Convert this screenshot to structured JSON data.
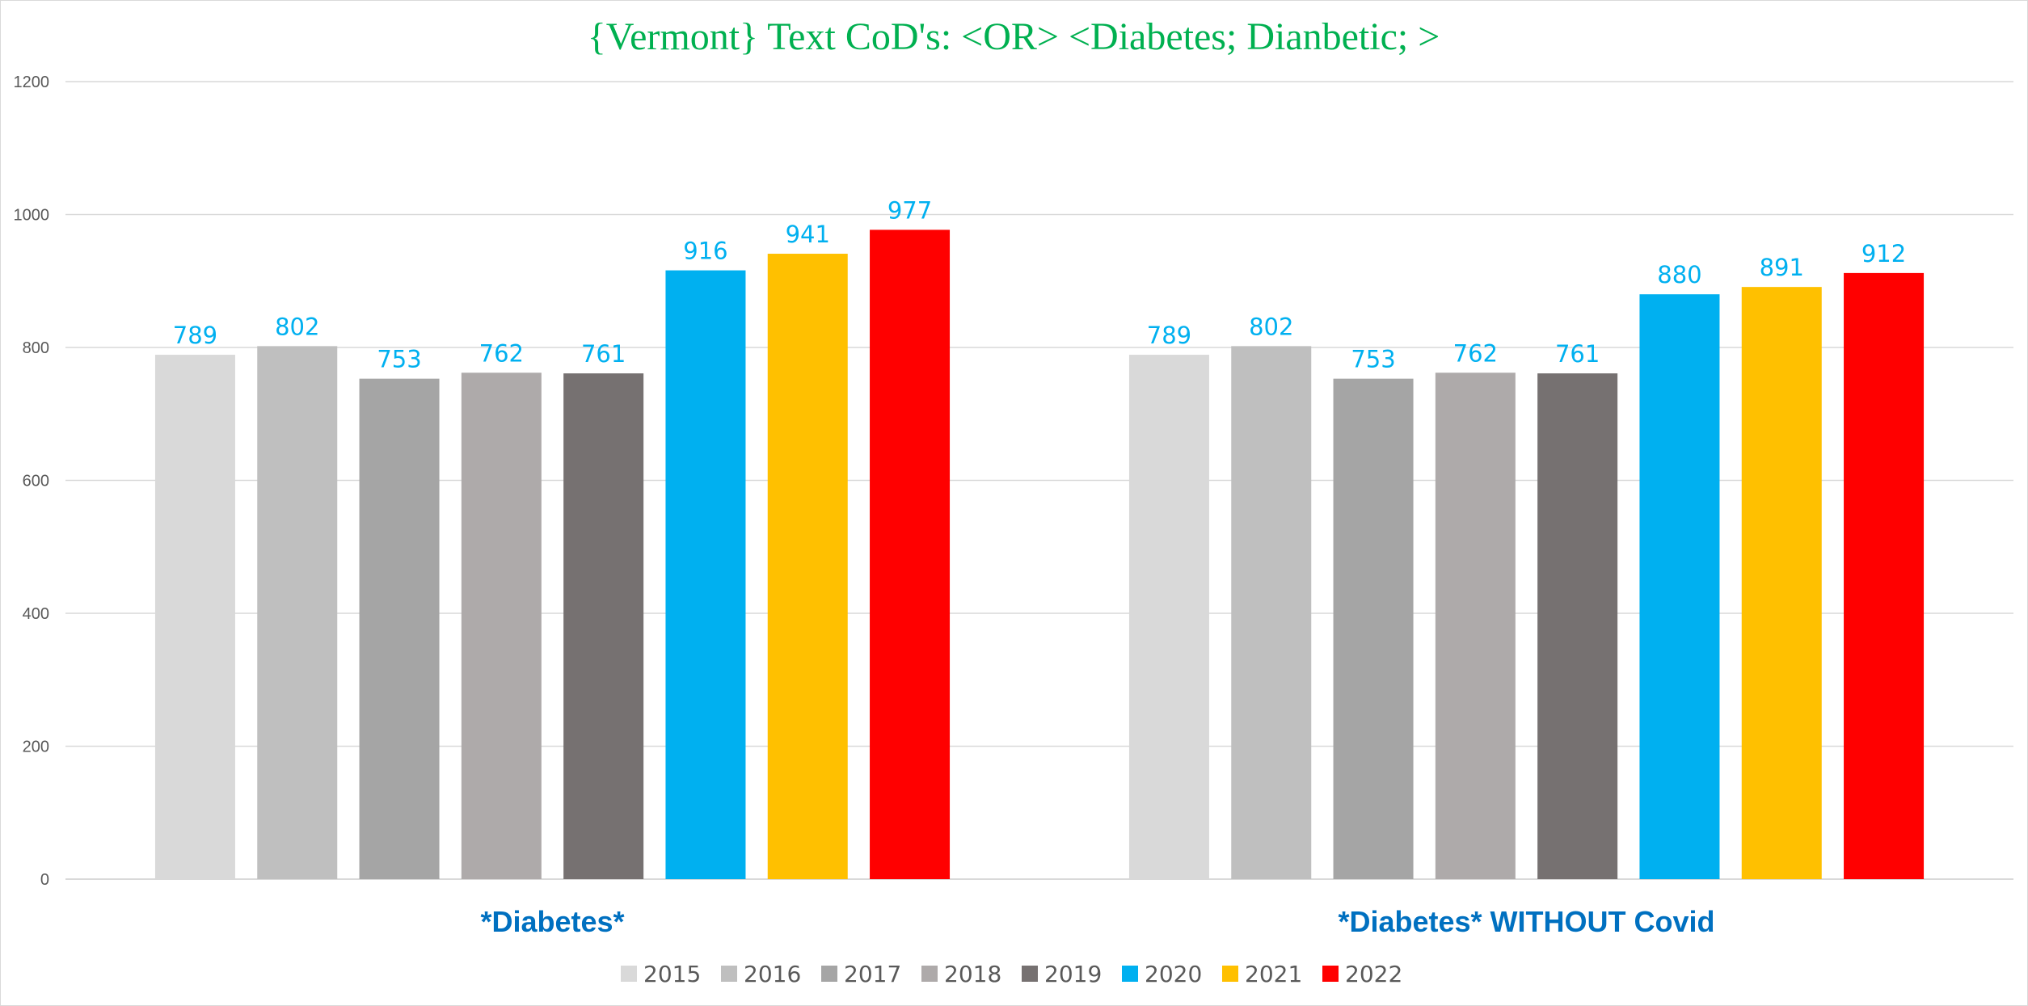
{
  "chart_data": {
    "type": "bar",
    "title": "{Vermont}  Text CoD's: <OR> <Diabetes; Dianbetic; >",
    "xlabel": "",
    "ylabel": "",
    "ylim": [
      0,
      1200
    ],
    "yticks": [
      0,
      200,
      400,
      600,
      800,
      1000,
      1200
    ],
    "grid": true,
    "legend_position": "bottom",
    "categories": [
      "*Diabetes*",
      "*Diabetes* WITHOUT Covid"
    ],
    "series": [
      {
        "name": "2015",
        "color": "#d9d9d9",
        "values": [
          789,
          789
        ]
      },
      {
        "name": "2016",
        "color": "#bfbfbf",
        "values": [
          802,
          802
        ]
      },
      {
        "name": "2017",
        "color": "#a5a5a5",
        "values": [
          753,
          753
        ]
      },
      {
        "name": "2018",
        "color": "#aeaaaa",
        "values": [
          762,
          762
        ]
      },
      {
        "name": "2019",
        "color": "#767171",
        "values": [
          761,
          761
        ]
      },
      {
        "name": "2020",
        "color": "#00b0f0",
        "values": [
          916,
          880
        ]
      },
      {
        "name": "2021",
        "color": "#ffc000",
        "values": [
          941,
          891
        ]
      },
      {
        "name": "2022",
        "color": "#ff0000",
        "values": [
          977,
          912
        ]
      }
    ]
  },
  "colors": {
    "title": "#00b050",
    "category_label": "#0070c0",
    "data_label": "#00b0f0",
    "gridline": "#d9d9d9",
    "tick_label": "#595959"
  }
}
